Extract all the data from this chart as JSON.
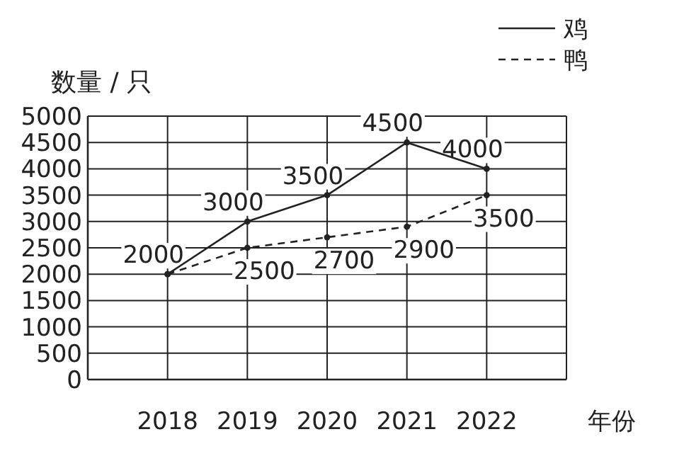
{
  "chart_data": {
    "type": "line",
    "xlabel": "年份",
    "ylabel": "数量 / 只",
    "categories": [
      "2018",
      "2019",
      "2020",
      "2021",
      "2022"
    ],
    "series": [
      {
        "name": "鸡",
        "color": "#222222",
        "line_style": "solid",
        "values": [
          2000,
          3000,
          3500,
          4500,
          4000
        ],
        "value_labels": [
          "2000",
          "3000",
          "3500",
          "4500",
          "4000"
        ]
      },
      {
        "name": "鸭",
        "color": "#222222",
        "line_style": "dashed",
        "values": [
          2000,
          2500,
          2700,
          2900,
          3500
        ],
        "value_labels": [
          null,
          "2500",
          "2700",
          "2900",
          "3500"
        ]
      }
    ],
    "ylim": [
      0,
      5000
    ],
    "yticks": [
      0,
      500,
      1000,
      1500,
      2000,
      2500,
      3000,
      3500,
      4000,
      4500,
      5000
    ],
    "grid": true,
    "legend": "top right",
    "marker": "circle"
  }
}
